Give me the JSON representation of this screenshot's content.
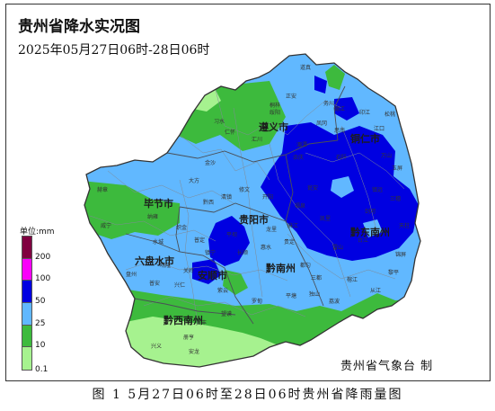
{
  "title": "贵州省降水实况图",
  "subtitle": "2025年05月27日06时-28日06时",
  "legend": {
    "unit": "单位:mm",
    "thresholds": [
      "0.1",
      "10",
      "25",
      "50",
      "100",
      "200"
    ],
    "colors": [
      "#a6f28f",
      "#3dba3d",
      "#61b8ff",
      "#0000e1",
      "#fa00fa",
      "#800040"
    ]
  },
  "cities": [
    {
      "name": "遵义市"
    },
    {
      "name": "铜仁市"
    },
    {
      "name": "毕节市"
    },
    {
      "name": "贵阳市"
    },
    {
      "name": "黔东南州"
    },
    {
      "name": "六盘水市"
    },
    {
      "name": "安顺市"
    },
    {
      "name": "黔南州"
    },
    {
      "name": "黔西南州"
    }
  ],
  "counties": [
    {
      "name": "道真"
    },
    {
      "name": "正安"
    },
    {
      "name": "桐梓"
    },
    {
      "name": "习水"
    },
    {
      "name": "绥阳"
    },
    {
      "name": "务川"
    },
    {
      "name": "湄潭"
    },
    {
      "name": "凤冈"
    },
    {
      "name": "仁怀"
    },
    {
      "name": "汇川"
    },
    {
      "name": "余庆"
    },
    {
      "name": "思南"
    },
    {
      "name": "德江"
    },
    {
      "name": "印江"
    },
    {
      "name": "江口"
    },
    {
      "name": "松桃"
    },
    {
      "name": "石阡"
    },
    {
      "name": "万山"
    },
    {
      "name": "玉屏"
    },
    {
      "name": "赫章"
    },
    {
      "name": "大方"
    },
    {
      "name": "黔西"
    },
    {
      "name": "金沙"
    },
    {
      "name": "织金"
    },
    {
      "name": "纳雍"
    },
    {
      "name": "威宁"
    },
    {
      "name": "修文"
    },
    {
      "name": "开阳"
    },
    {
      "name": "瓮安"
    },
    {
      "name": "福泉"
    },
    {
      "name": "麻江"
    },
    {
      "name": "凯里"
    },
    {
      "name": "镇远"
    },
    {
      "name": "三穗"
    },
    {
      "name": "天柱"
    },
    {
      "name": "锦屏"
    },
    {
      "name": "剑河"
    },
    {
      "name": "台江"
    },
    {
      "name": "雷山"
    },
    {
      "name": "榕江"
    },
    {
      "name": "从江"
    },
    {
      "name": "黎平"
    },
    {
      "name": "三都"
    },
    {
      "name": "荔波"
    },
    {
      "name": "独山"
    },
    {
      "name": "平塘"
    },
    {
      "name": "罗甸"
    },
    {
      "name": "惠水"
    },
    {
      "name": "长顺"
    },
    {
      "name": "紫云"
    },
    {
      "name": "镇宁"
    },
    {
      "name": "关岭"
    },
    {
      "name": "普定"
    },
    {
      "name": "平坝"
    },
    {
      "name": "晴隆"
    },
    {
      "name": "普安"
    },
    {
      "name": "盘州"
    },
    {
      "name": "水城"
    },
    {
      "name": "兴仁"
    },
    {
      "name": "贞丰"
    },
    {
      "name": "望谟"
    },
    {
      "name": "册亨"
    },
    {
      "name": "安龙"
    },
    {
      "name": "兴义"
    },
    {
      "name": "龙里"
    },
    {
      "name": "贵定"
    },
    {
      "name": "都匀"
    },
    {
      "name": "清镇"
    }
  ],
  "credit": "贵州省气象台 制",
  "caption": "图 1 5月27日06时至28日06时贵州省降雨量图"
}
